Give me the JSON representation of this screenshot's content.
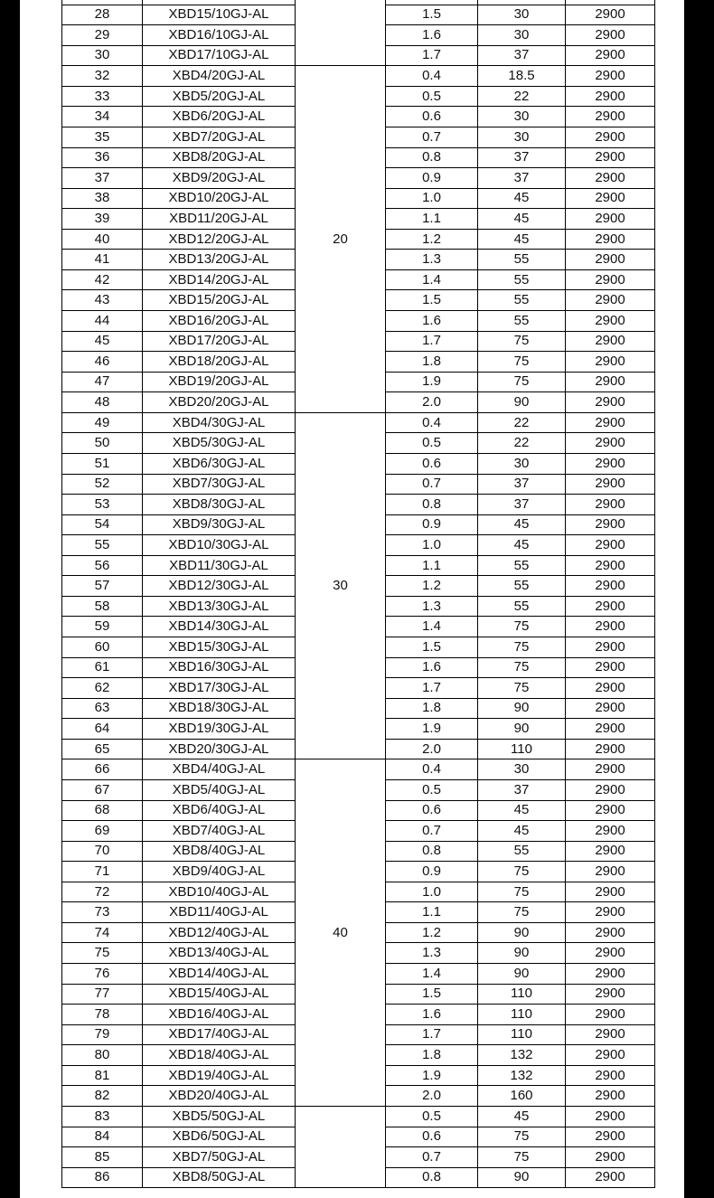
{
  "groups": [
    {
      "head": "",
      "rows": [
        [
          "",
          "",
          "",
          "",
          ""
        ],
        [
          "28",
          "XBD15/10GJ-AL",
          "1.5",
          "30",
          "2900"
        ],
        [
          "29",
          "XBD16/10GJ-AL",
          "1.6",
          "30",
          "2900"
        ],
        [
          "30",
          "XBD17/10GJ-AL",
          "1.7",
          "37",
          "2900"
        ]
      ]
    },
    {
      "head": "20",
      "rows": [
        [
          "32",
          "XBD4/20GJ-AL",
          "0.4",
          "18.5",
          "2900"
        ],
        [
          "33",
          "XBD5/20GJ-AL",
          "0.5",
          "22",
          "2900"
        ],
        [
          "34",
          "XBD6/20GJ-AL",
          "0.6",
          "30",
          "2900"
        ],
        [
          "35",
          "XBD7/20GJ-AL",
          "0.7",
          "30",
          "2900"
        ],
        [
          "36",
          "XBD8/20GJ-AL",
          "0.8",
          "37",
          "2900"
        ],
        [
          "37",
          "XBD9/20GJ-AL",
          "0.9",
          "37",
          "2900"
        ],
        [
          "38",
          "XBD10/20GJ-AL",
          "1.0",
          "45",
          "2900"
        ],
        [
          "39",
          "XBD11/20GJ-AL",
          "1.1",
          "45",
          "2900"
        ],
        [
          "40",
          "XBD12/20GJ-AL",
          "1.2",
          "45",
          "2900"
        ],
        [
          "41",
          "XBD13/20GJ-AL",
          "1.3",
          "55",
          "2900"
        ],
        [
          "42",
          "XBD14/20GJ-AL",
          "1.4",
          "55",
          "2900"
        ],
        [
          "43",
          "XBD15/20GJ-AL",
          "1.5",
          "55",
          "2900"
        ],
        [
          "44",
          "XBD16/20GJ-AL",
          "1.6",
          "55",
          "2900"
        ],
        [
          "45",
          "XBD17/20GJ-AL",
          "1.7",
          "75",
          "2900"
        ],
        [
          "46",
          "XBD18/20GJ-AL",
          "1.8",
          "75",
          "2900"
        ],
        [
          "47",
          "XBD19/20GJ-AL",
          "1.9",
          "75",
          "2900"
        ],
        [
          "48",
          "XBD20/20GJ-AL",
          "2.0",
          "90",
          "2900"
        ]
      ]
    },
    {
      "head": "30",
      "rows": [
        [
          "49",
          "XBD4/30GJ-AL",
          "0.4",
          "22",
          "2900"
        ],
        [
          "50",
          "XBD5/30GJ-AL",
          "0.5",
          "22",
          "2900"
        ],
        [
          "51",
          "XBD6/30GJ-AL",
          "0.6",
          "30",
          "2900"
        ],
        [
          "52",
          "XBD7/30GJ-AL",
          "0.7",
          "37",
          "2900"
        ],
        [
          "53",
          "XBD8/30GJ-AL",
          "0.8",
          "37",
          "2900"
        ],
        [
          "54",
          "XBD9/30GJ-AL",
          "0.9",
          "45",
          "2900"
        ],
        [
          "55",
          "XBD10/30GJ-AL",
          "1.0",
          "45",
          "2900"
        ],
        [
          "56",
          "XBD11/30GJ-AL",
          "1.1",
          "55",
          "2900"
        ],
        [
          "57",
          "XBD12/30GJ-AL",
          "1.2",
          "55",
          "2900"
        ],
        [
          "58",
          "XBD13/30GJ-AL",
          "1.3",
          "55",
          "2900"
        ],
        [
          "59",
          "XBD14/30GJ-AL",
          "1.4",
          "75",
          "2900"
        ],
        [
          "60",
          "XBD15/30GJ-AL",
          "1.5",
          "75",
          "2900"
        ],
        [
          "61",
          "XBD16/30GJ-AL",
          "1.6",
          "75",
          "2900"
        ],
        [
          "62",
          "XBD17/30GJ-AL",
          "1.7",
          "75",
          "2900"
        ],
        [
          "63",
          "XBD18/30GJ-AL",
          "1.8",
          "90",
          "2900"
        ],
        [
          "64",
          "XBD19/30GJ-AL",
          "1.9",
          "90",
          "2900"
        ],
        [
          "65",
          "XBD20/30GJ-AL",
          "2.0",
          "110",
          "2900"
        ]
      ]
    },
    {
      "head": "40",
      "rows": [
        [
          "66",
          "XBD4/40GJ-AL",
          "0.4",
          "30",
          "2900"
        ],
        [
          "67",
          "XBD5/40GJ-AL",
          "0.5",
          "37",
          "2900"
        ],
        [
          "68",
          "XBD6/40GJ-AL",
          "0.6",
          "45",
          "2900"
        ],
        [
          "69",
          "XBD7/40GJ-AL",
          "0.7",
          "45",
          "2900"
        ],
        [
          "70",
          "XBD8/40GJ-AL",
          "0.8",
          "55",
          "2900"
        ],
        [
          "71",
          "XBD9/40GJ-AL",
          "0.9",
          "75",
          "2900"
        ],
        [
          "72",
          "XBD10/40GJ-AL",
          "1.0",
          "75",
          "2900"
        ],
        [
          "73",
          "XBD11/40GJ-AL",
          "1.1",
          "75",
          "2900"
        ],
        [
          "74",
          "XBD12/40GJ-AL",
          "1.2",
          "90",
          "2900"
        ],
        [
          "75",
          "XBD13/40GJ-AL",
          "1.3",
          "90",
          "2900"
        ],
        [
          "76",
          "XBD14/40GJ-AL",
          "1.4",
          "90",
          "2900"
        ],
        [
          "77",
          "XBD15/40GJ-AL",
          "1.5",
          "110",
          "2900"
        ],
        [
          "78",
          "XBD16/40GJ-AL",
          "1.6",
          "110",
          "2900"
        ],
        [
          "79",
          "XBD17/40GJ-AL",
          "1.7",
          "110",
          "2900"
        ],
        [
          "80",
          "XBD18/40GJ-AL",
          "1.8",
          "132",
          "2900"
        ],
        [
          "81",
          "XBD19/40GJ-AL",
          "1.9",
          "132",
          "2900"
        ],
        [
          "82",
          "XBD20/40GJ-AL",
          "2.0",
          "160",
          "2900"
        ]
      ]
    },
    {
      "head": "",
      "rows": [
        [
          "83",
          "XBD5/50GJ-AL",
          "0.5",
          "45",
          "2900"
        ],
        [
          "84",
          "XBD6/50GJ-AL",
          "0.6",
          "75",
          "2900"
        ],
        [
          "85",
          "XBD7/50GJ-AL",
          "0.7",
          "75",
          "2900"
        ],
        [
          "86",
          "XBD8/50GJ-AL",
          "0.8",
          "90",
          "2900"
        ]
      ]
    }
  ]
}
